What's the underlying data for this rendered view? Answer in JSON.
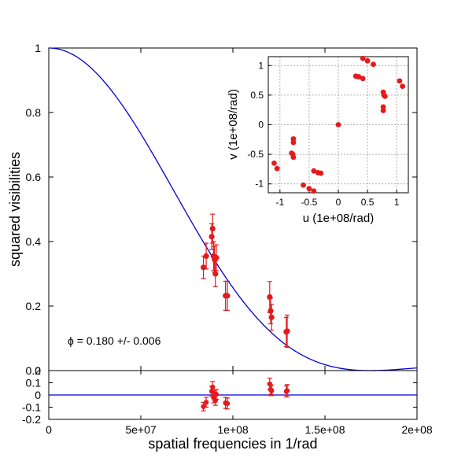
{
  "chart_data": [
    {
      "type": "scatter",
      "panel": "main",
      "xlabel": "spatial frequencies in 1/rad",
      "ylabel": "squared visibilities",
      "xlim": [
        0,
        200000000
      ],
      "ylim": [
        0,
        1
      ],
      "x_ticks": [
        "0",
        "5e+07",
        "1e+08",
        "1.5e+08",
        "2e+08"
      ],
      "y_ticks": [
        "0",
        "0.2",
        "0.4",
        "0.6",
        "0.8",
        "1"
      ],
      "annotation": "ϕ = 0.180 +/- 0.006",
      "series": [
        {
          "kind": "points",
          "color": "#e41a1c",
          "x": [
            84000000,
            85500000,
            88500000,
            89000000,
            89500000,
            90000000,
            90500000,
            91000000,
            96000000,
            97000000,
            120000000,
            120500000,
            121000000,
            129000000,
            129500000
          ],
          "y": [
            0.32,
            0.355,
            0.415,
            0.44,
            0.355,
            0.345,
            0.3,
            0.35,
            0.232,
            0.232,
            0.228,
            0.185,
            0.165,
            0.12,
            0.122
          ],
          "err": [
            0.035,
            0.04,
            0.04,
            0.045,
            0.045,
            0.04,
            0.04,
            0.04,
            0.045,
            0.045,
            0.048,
            0.04,
            0.04,
            0.045,
            0.05
          ]
        },
        {
          "kind": "model-curve",
          "color": "#0000dd"
        }
      ]
    },
    {
      "type": "scatter",
      "panel": "residuals",
      "xlim": [
        0,
        200000000
      ],
      "ylim": [
        -0.2,
        0.2
      ],
      "y_ticks": [
        "0.2",
        "0.1",
        "0",
        "-0.1",
        "-0.2"
      ],
      "series": [
        {
          "kind": "points",
          "color": "#e41a1c",
          "x": [
            84000000,
            85500000,
            88500000,
            89000000,
            89500000,
            90000000,
            90500000,
            91000000,
            96000000,
            97000000,
            120000000,
            120500000,
            121000000,
            129000000,
            129500000
          ],
          "y": [
            -0.095,
            -0.06,
            0.03,
            0.065,
            -0.02,
            -0.005,
            -0.045,
            0.005,
            -0.065,
            -0.07,
            0.09,
            0.045,
            0.035,
            0.03,
            0.035
          ],
          "err": [
            0.035,
            0.04,
            0.04,
            0.045,
            0.045,
            0.04,
            0.04,
            0.04,
            0.045,
            0.045,
            0.048,
            0.04,
            0.04,
            0.045,
            0.05
          ]
        },
        {
          "kind": "zero-line",
          "color": "#0000dd"
        }
      ]
    },
    {
      "type": "scatter",
      "panel": "uv-inset",
      "xlabel": "u (1e+08/rad)",
      "ylabel": "v (1e+08/rad)",
      "xlim": [
        -1.2,
        1.2
      ],
      "ylim": [
        -1.15,
        1.15
      ],
      "x_ticks": [
        "-1",
        "-0.5",
        "0",
        "0.5",
        "1"
      ],
      "y_ticks": [
        "1",
        "0.5",
        "0",
        "-0.5",
        "-1"
      ],
      "grid": true,
      "series": [
        {
          "color": "#e41a1c",
          "u": [
            0,
            0.42,
            0.5,
            0.6,
            0.3,
            0.35,
            0.42,
            0.77,
            0.78,
            0.8,
            0.77,
            0.77,
            1.05,
            1.1,
            -0.42,
            -0.5,
            -0.6,
            -0.3,
            -0.35,
            -0.42,
            -0.77,
            -0.78,
            -0.8,
            -0.77,
            -0.77,
            -1.05,
            -1.1
          ],
          "v": [
            0,
            1.12,
            1.08,
            1.02,
            0.82,
            0.81,
            0.78,
            0.55,
            0.5,
            0.48,
            0.3,
            0.24,
            0.74,
            0.65,
            -1.12,
            -1.08,
            -1.02,
            -0.82,
            -0.81,
            -0.78,
            -0.55,
            -0.5,
            -0.48,
            -0.3,
            -0.24,
            -0.74,
            -0.65
          ]
        }
      ]
    }
  ]
}
